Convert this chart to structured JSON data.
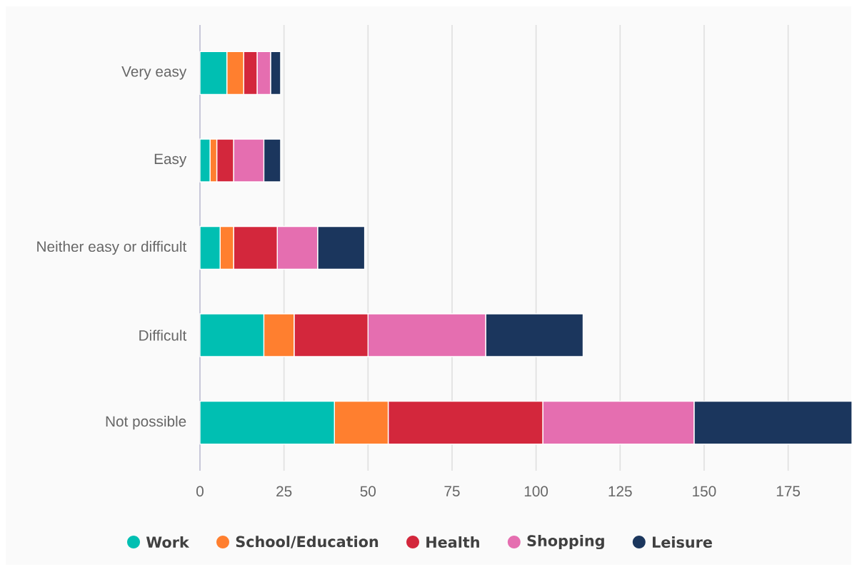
{
  "chart_data": {
    "type": "bar",
    "orientation": "horizontal",
    "stacked": true,
    "categories": [
      "Very easy",
      "Easy",
      "Neither easy or difficult",
      "Difficult",
      "Not possible"
    ],
    "series": [
      {
        "name": "Work",
        "color": "#00bfb2",
        "values": [
          8,
          3,
          6,
          19,
          40
        ]
      },
      {
        "name": "School/Education",
        "color": "#ff7f2f",
        "values": [
          5,
          2,
          4,
          9,
          16
        ]
      },
      {
        "name": "Health",
        "color": "#d3273c",
        "values": [
          4,
          5,
          13,
          22,
          46
        ]
      },
      {
        "name": "Shopping",
        "color": "#e56eb0",
        "values": [
          4,
          9,
          12,
          35,
          45
        ]
      },
      {
        "name": "Leisure",
        "color": "#1b365d",
        "values": [
          3,
          5,
          14,
          29,
          47
        ]
      }
    ],
    "xlim": [
      0,
      194
    ],
    "xticks": [
      0,
      25,
      50,
      75,
      100,
      125,
      150,
      175
    ],
    "grid": "x",
    "legend": "bottom"
  }
}
